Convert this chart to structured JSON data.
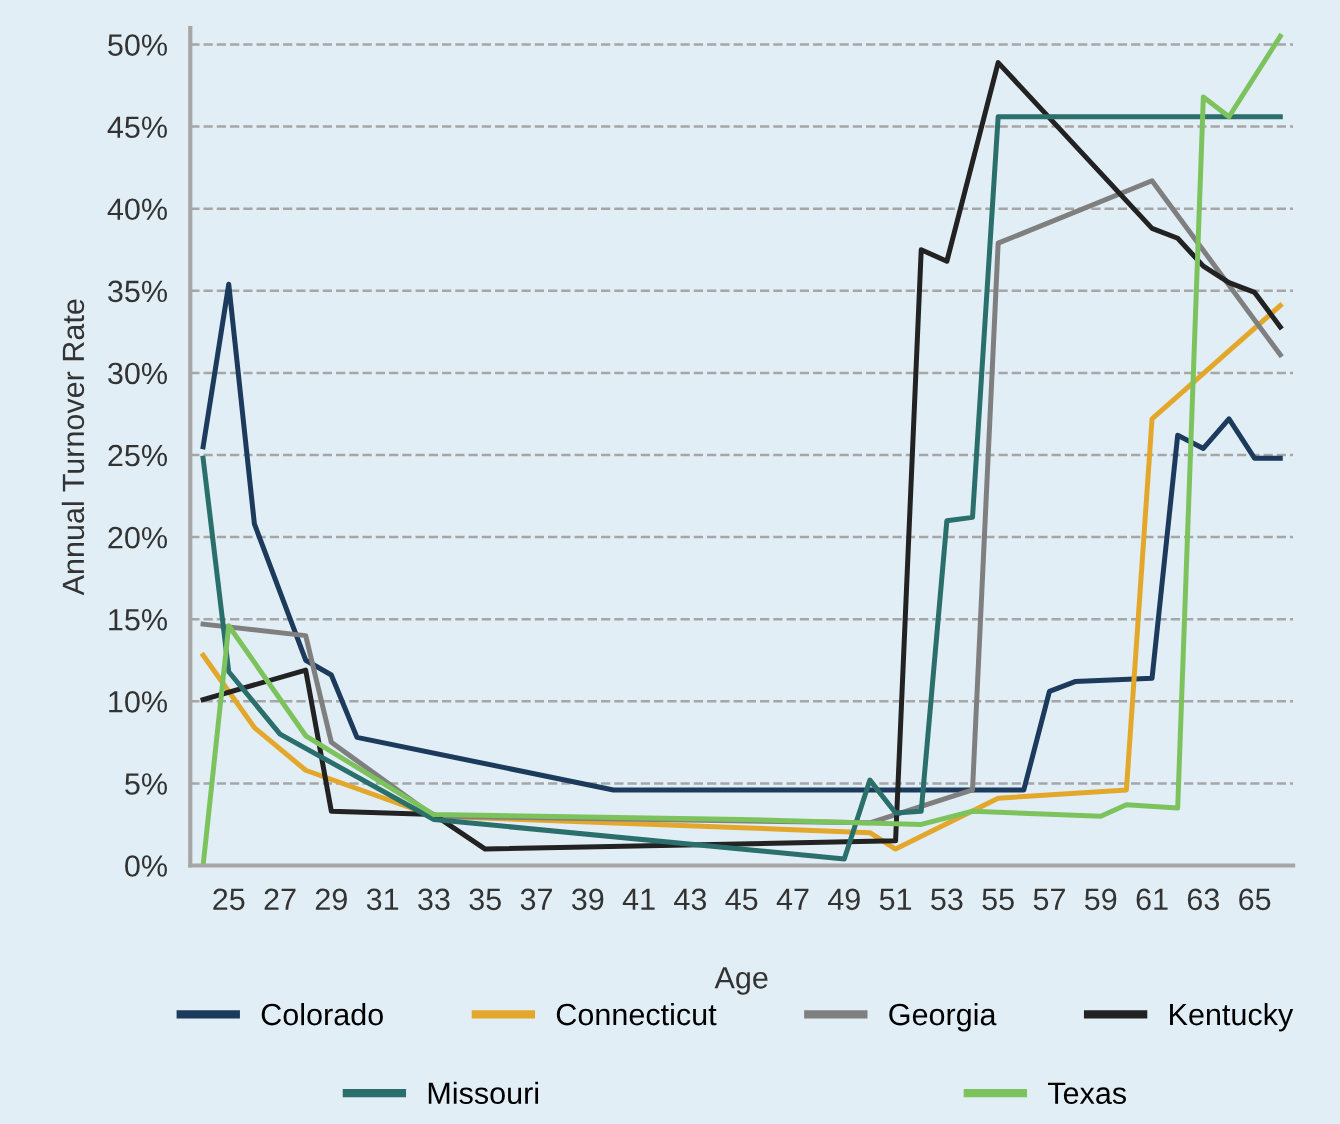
{
  "chart_data": {
    "type": "line",
    "xlabel": "Age",
    "ylabel": "Annual Turnover Rate",
    "xlim": [
      23.5,
      66.5
    ],
    "xticks": [
      25,
      27,
      29,
      31,
      33,
      35,
      37,
      39,
      41,
      43,
      45,
      47,
      49,
      51,
      53,
      55,
      57,
      59,
      61,
      63,
      65
    ],
    "ylim": [
      0,
      51
    ],
    "yticks": [
      {
        "value": 0,
        "label": "0%"
      },
      {
        "value": 5,
        "label": "5%"
      },
      {
        "value": 10,
        "label": "10%"
      },
      {
        "value": 15,
        "label": "15%"
      },
      {
        "value": 20,
        "label": "20%"
      },
      {
        "value": 25,
        "label": "25%"
      },
      {
        "value": 30,
        "label": "30%"
      },
      {
        "value": 35,
        "label": "35%"
      },
      {
        "value": 40,
        "label": "40%"
      },
      {
        "value": 45,
        "label": "45%"
      },
      {
        "value": 50,
        "label": "50%"
      }
    ],
    "grid": "y",
    "legend": "bottom",
    "marker": "none",
    "line_style": "solid",
    "series": [
      {
        "name": "Colorado",
        "color": "#1b3a5c",
        "x": [
          24,
          25,
          26,
          28,
          29,
          30,
          40,
          56,
          57,
          58,
          61,
          62,
          63,
          64,
          65,
          66
        ],
        "values": [
          25.5,
          35.4,
          20.8,
          12.5,
          11.6,
          7.8,
          4.6,
          4.6,
          10.6,
          11.2,
          11.4,
          26.2,
          25.4,
          27.2,
          24.8,
          24.8
        ]
      },
      {
        "name": "Connecticut",
        "color": "#e3a82b",
        "x": [
          24,
          26,
          28,
          33,
          45,
          50,
          51,
          55,
          60,
          61,
          66
        ],
        "values": [
          12.8,
          8.4,
          5.8,
          3.0,
          2.3,
          2.0,
          1.0,
          4.1,
          4.6,
          27.2,
          34.1
        ]
      },
      {
        "name": "Georgia",
        "color": "#7f7f7f",
        "x": [
          24,
          28,
          29,
          33,
          50,
          54,
          55,
          61,
          66
        ],
        "values": [
          14.7,
          14.0,
          7.5,
          3.0,
          2.6,
          4.6,
          37.9,
          41.7,
          31.1
        ]
      },
      {
        "name": "Kentucky",
        "color": "#222222",
        "x": [
          24,
          28,
          29,
          33,
          35,
          51,
          52,
          53,
          55,
          61,
          62,
          63,
          64,
          65,
          66
        ],
        "values": [
          10.1,
          11.9,
          3.3,
          3.1,
          1.0,
          1.5,
          37.5,
          36.8,
          48.9,
          38.8,
          38.2,
          36.5,
          35.5,
          34.9,
          32.8
        ]
      },
      {
        "name": "Missouri",
        "color": "#2a6f6b",
        "x": [
          24,
          25,
          27,
          33,
          49,
          50,
          51,
          52,
          53,
          54,
          55,
          66
        ],
        "values": [
          24.8,
          11.8,
          8.0,
          2.8,
          0.4,
          5.2,
          3.2,
          3.3,
          21.0,
          21.2,
          45.6,
          45.6
        ]
      },
      {
        "name": "Texas",
        "color": "#7cc35e",
        "x": [
          24,
          25,
          28,
          33,
          45,
          52,
          54,
          59,
          60,
          62,
          63,
          64,
          66
        ],
        "values": [
          0,
          14.6,
          7.9,
          3.1,
          2.8,
          2.5,
          3.3,
          3.0,
          3.7,
          3.5,
          46.8,
          45.6,
          50.5
        ]
      }
    ]
  }
}
